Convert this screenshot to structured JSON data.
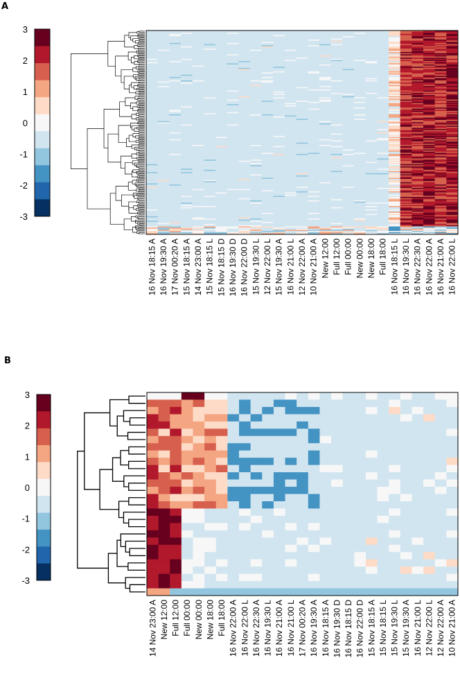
{
  "chart_data": [
    {
      "panel": "A",
      "type": "heatmap",
      "colorbar": {
        "ticks": [
          "3",
          "2",
          "1",
          "0",
          "-1",
          "-2",
          "-3"
        ],
        "min": -3,
        "max": 3,
        "colors": [
          "#67001f",
          "#b2182b",
          "#d6604d",
          "#f4a582",
          "#fddbc7",
          "#f7f7f7",
          "#d1e5f0",
          "#92c5de",
          "#4393c3",
          "#2166ac",
          "#053061"
        ]
      },
      "columns": [
        "16 Nov 18:15 A",
        "16 Nov 19:30 A",
        "17 Nov 00:20 A",
        "15 Nov 18:15 A",
        "14 Nov 23:00 A",
        "15 Nov 18:15 L",
        "15 Nov 18:15 D",
        "16 Nov 19:30 D",
        "16 Nov 22:00 D",
        "15 Nov 19:30 L",
        "12 Nov 22:00 L",
        "15 Nov 19:30 A",
        "16 Nov 21:00 L",
        "12 Nov 22:00 A",
        "10 Nov 21:00 A",
        "New 12:00",
        "Full 12:00",
        "Full 00:00",
        "New 00:00",
        "New 18:00",
        "Full 18:00",
        "16 Nov 18:15 L",
        "16 Nov 19:30 L",
        "16 Nov 22:30 A",
        "16 Nov 22:00 A",
        "16 Nov 21:00 A",
        "16 Nov 22:00 L"
      ],
      "row_count": 180,
      "value_profile": {
        "background": -0.8,
        "last_six_columns": [
          0.5,
          2.2,
          2.4,
          2.5,
          2.3,
          2.6
        ]
      }
    },
    {
      "panel": "B",
      "type": "heatmap",
      "colorbar": {
        "ticks": [
          "3",
          "2",
          "1",
          "0",
          "-1",
          "-2",
          "-3"
        ],
        "min": -3,
        "max": 3
      },
      "columns": [
        "14 Nov 23:00 A",
        "New 12:00",
        "Full 12:00",
        "Full 00:00",
        "New 00:00",
        "New 18:00",
        "Full 18:00",
        "16 Nov 22:00 A",
        "16 Nov 22:00 L",
        "16 Nov 22:30 A",
        "16 Nov 19:30 L",
        "16 Nov 21:00 A",
        "16 Nov 21:00 L",
        "17 Nov 00:20 A",
        "16 Nov 19:30 A",
        "16 Nov 18:15 A",
        "16 Nov 19:30 D",
        "16 Nov 18:15 D",
        "16 Nov 22:00 D",
        "15 Nov 18:15 A",
        "15 Nov 18:15 L",
        "15 Nov 19:30 L",
        "15 Nov 19:30 A",
        "16 Nov 21:00 L",
        "12 Nov 22:00 L",
        "12 Nov 22:00 A",
        "10 Nov 21:00 A"
      ],
      "row_count": 28
    }
  ]
}
